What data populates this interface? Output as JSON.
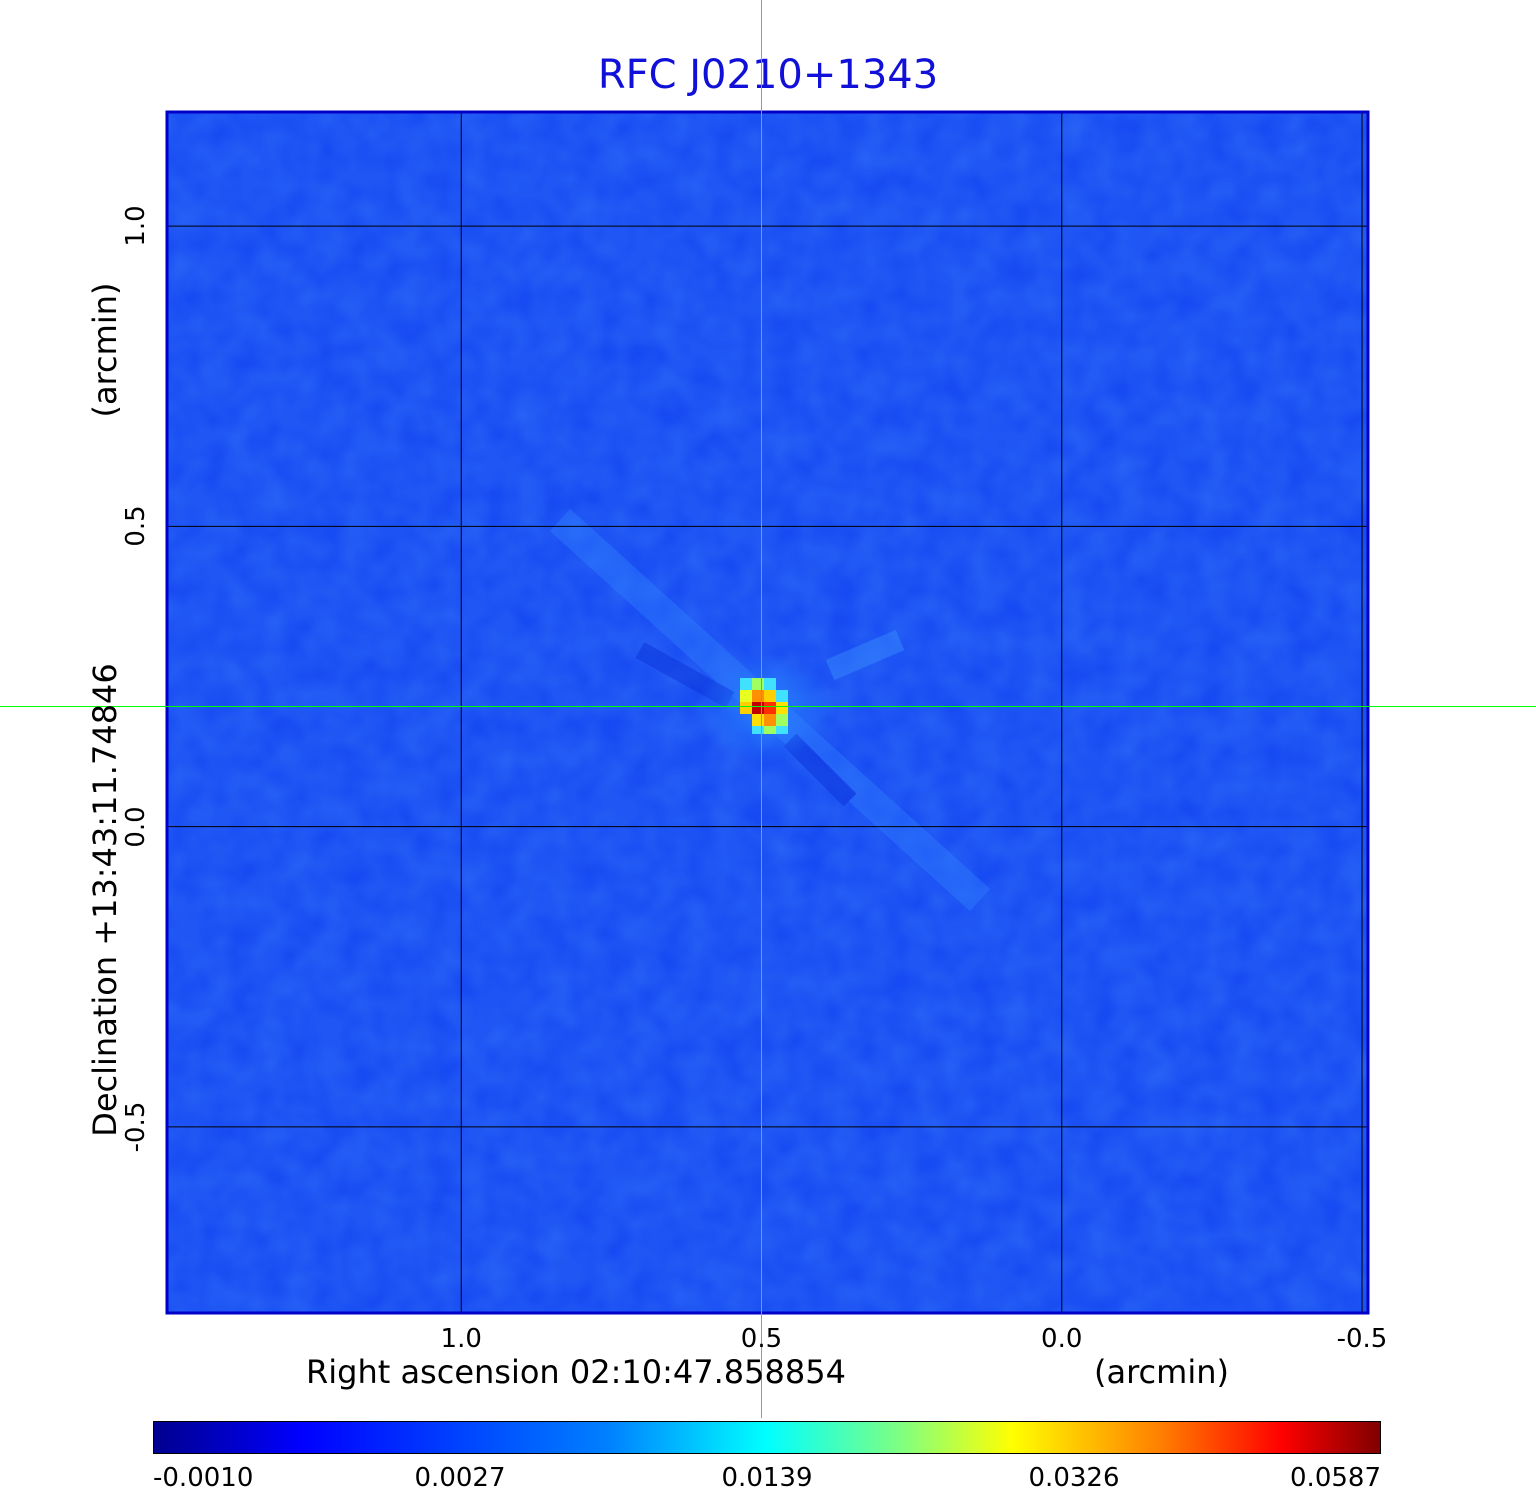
{
  "chart_data": {
    "type": "heatmap",
    "title": "RFC J0210+1343",
    "xlabel": "Right ascension  02:10:47.858854",
    "xlabel_unit": "(arcmin)",
    "ylabel": "Declination  +13:43:11.74846",
    "ylabel_unit": "(arcmin)",
    "xlim": [
      1.49,
      -0.51
    ],
    "ylim": [
      -0.81,
      1.19
    ],
    "x_ticks": [
      1.0,
      0.5,
      0.0,
      -0.5
    ],
    "x_tick_labels": [
      "1.0",
      "0.5",
      "0.0",
      "-0.5"
    ],
    "y_ticks": [
      -0.5,
      0.0,
      0.5,
      1.0
    ],
    "y_tick_labels": [
      "-0.5",
      "0.0",
      "0.5",
      "1.0"
    ],
    "grid": true,
    "source_peak": {
      "x": 0.5,
      "y": 0.2,
      "value": 0.0587
    },
    "crosshair": {
      "x": 0.5,
      "y": 0.2
    },
    "colormap": "jet",
    "colorbar": {
      "orientation": "horizontal",
      "range": [
        -0.001,
        0.0587
      ],
      "tick_labels": [
        "-0.0010",
        "0.0027",
        "0.0139",
        "0.0326",
        "0.0587"
      ]
    }
  },
  "colors": {
    "title": "#1010d8",
    "crosshair": "#00ff00",
    "background_map": "#1446f2"
  }
}
